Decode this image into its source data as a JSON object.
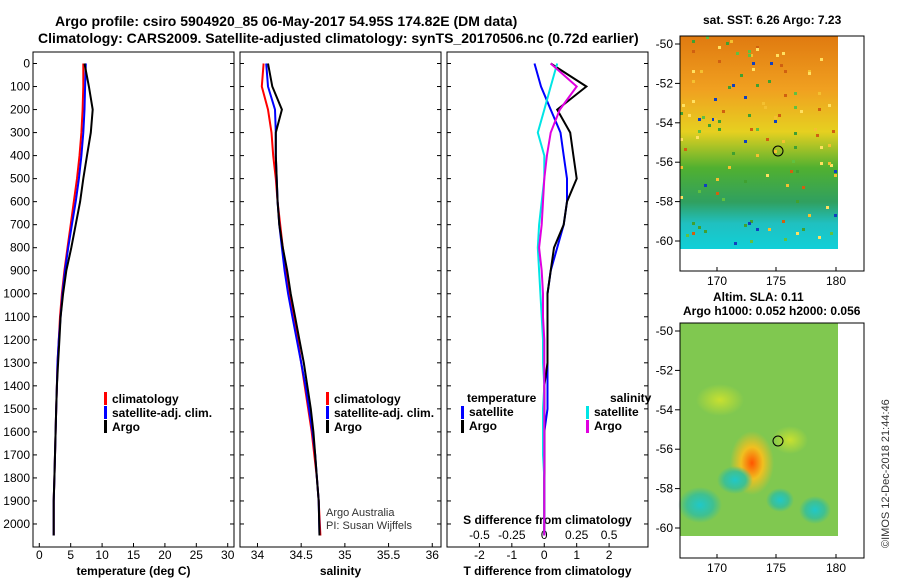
{
  "header": {
    "line1": "Argo profile: csiro 5904920_85 06-May-2017 54.95S 174.82E (DM data)",
    "line2": "Climatology: CARS2009. Satellite-adjusted climatology: synTS_20170506.nc (0.72d earlier)"
  },
  "colors": {
    "climatology": "#ff0000",
    "satellite": "#0000ff",
    "argo": "#000000",
    "sal_satellite": "#00e5e5",
    "sal_argo": "#e000e0"
  },
  "depth_ticks": [
    "0",
    "100",
    "200",
    "300",
    "400",
    "500",
    "600",
    "700",
    "800",
    "900",
    "1000",
    "1100",
    "1200",
    "1300",
    "1400",
    "1500",
    "1600",
    "1700",
    "1800",
    "1900",
    "2000"
  ],
  "legend": {
    "climatology": "climatology",
    "satellite_adj": "satellite-adj. clim.",
    "argo": "Argo",
    "temperature": "temperature",
    "salinity": "salinity",
    "satellite": "satellite"
  },
  "credits": {
    "line1": "Argo Australia",
    "line2": "PI: Susan Wijffels"
  },
  "map_sst": {
    "title": "sat. SST: 6.26 Argo: 7.23"
  },
  "map_sla": {
    "title1": "Altim. SLA: 0.11",
    "title2": "Argo h1000: 0.052 h2000: 0.056"
  },
  "map_ticks": {
    "lat": [
      "-50",
      "-52",
      "-54",
      "-56",
      "-58",
      "-60"
    ],
    "lon": [
      "170",
      "175",
      "180"
    ]
  },
  "imos": "©IMOS 12-Dec-2018 21:44:46",
  "chart_data": [
    {
      "type": "line",
      "xlabel": "temperature (deg C)",
      "ylabel": "",
      "xlim": [
        -1,
        31
      ],
      "ylim": [
        2100,
        -50
      ],
      "xticks": [
        "0",
        "5",
        "10",
        "15",
        "20",
        "25",
        "30"
      ],
      "series": [
        {
          "name": "climatology",
          "x": [
            7.0,
            7.0,
            6.9,
            6.7,
            6.4,
            6.0,
            5.5,
            5.0,
            4.5,
            4.0,
            3.6,
            3.3,
            3.1,
            2.9,
            2.8,
            2.7,
            2.6,
            2.5,
            2.4,
            2.3,
            2.3
          ],
          "y": [
            0,
            100,
            200,
            300,
            400,
            500,
            600,
            700,
            800,
            900,
            1000,
            1100,
            1200,
            1300,
            1400,
            1500,
            1600,
            1700,
            1800,
            1900,
            2050
          ]
        },
        {
          "name": "satellite-adj. clim.",
          "x": [
            7.4,
            7.3,
            7.2,
            7.0,
            6.7,
            6.3,
            5.8,
            5.2,
            4.6,
            4.1,
            3.7,
            3.4,
            3.1,
            2.9,
            2.8,
            2.7,
            2.6,
            2.5,
            2.4,
            2.3,
            2.3
          ],
          "y": [
            0,
            100,
            200,
            300,
            400,
            500,
            600,
            700,
            800,
            900,
            1000,
            1100,
            1200,
            1300,
            1400,
            1500,
            1600,
            1700,
            1800,
            1900,
            2050
          ]
        },
        {
          "name": "Argo",
          "x": [
            7.2,
            7.9,
            8.5,
            8.2,
            7.6,
            7.0,
            6.5,
            5.8,
            5.1,
            4.3,
            3.8,
            3.4,
            3.2,
            3.0,
            2.8,
            2.7,
            2.6,
            2.5,
            2.4,
            2.3,
            2.3
          ],
          "y": [
            0,
            100,
            200,
            300,
            400,
            500,
            600,
            700,
            800,
            900,
            1000,
            1100,
            1200,
            1300,
            1400,
            1500,
            1600,
            1700,
            1800,
            1900,
            2050
          ]
        }
      ]
    },
    {
      "type": "line",
      "xlabel": "salinity",
      "ylabel": "",
      "xlim": [
        33.8,
        36.1
      ],
      "ylim": [
        2100,
        -50
      ],
      "xticks": [
        "34",
        "34.5",
        "35",
        "35.5",
        "36"
      ],
      "series": [
        {
          "name": "climatology",
          "x": [
            34.07,
            34.05,
            34.12,
            34.16,
            34.18,
            34.21,
            34.23,
            34.26,
            34.29,
            34.33,
            34.37,
            34.42,
            34.46,
            34.5,
            34.54,
            34.58,
            34.62,
            34.65,
            34.68,
            34.7,
            34.72
          ],
          "y": [
            0,
            100,
            200,
            300,
            400,
            500,
            600,
            700,
            800,
            900,
            1000,
            1100,
            1200,
            1300,
            1400,
            1500,
            1600,
            1700,
            1800,
            1900,
            2050
          ]
        },
        {
          "name": "satellite-adj. clim.",
          "x": [
            34.1,
            34.12,
            34.2,
            34.21,
            34.21,
            34.22,
            34.23,
            34.25,
            34.28,
            34.31,
            34.35,
            34.4,
            34.45,
            34.5,
            34.55,
            34.59,
            34.63,
            34.66,
            34.68,
            34.7,
            34.71
          ],
          "y": [
            0,
            100,
            200,
            300,
            400,
            500,
            600,
            700,
            800,
            900,
            1000,
            1100,
            1200,
            1300,
            1400,
            1500,
            1600,
            1700,
            1800,
            1900,
            2050
          ]
        },
        {
          "name": "Argo",
          "x": [
            34.12,
            34.17,
            34.28,
            34.21,
            34.21,
            34.22,
            34.23,
            34.25,
            34.29,
            34.34,
            34.38,
            34.43,
            34.48,
            34.53,
            34.57,
            34.61,
            34.64,
            34.66,
            34.68,
            34.7,
            34.71
          ],
          "y": [
            0,
            100,
            200,
            300,
            400,
            500,
            600,
            700,
            800,
            900,
            1000,
            1100,
            1200,
            1300,
            1400,
            1500,
            1600,
            1700,
            1800,
            1900,
            2050
          ]
        }
      ]
    },
    {
      "type": "line",
      "xlabel": "T difference from climatology",
      "ylabel": "",
      "xlim": [
        -3,
        3.2
      ],
      "ylim": [
        2100,
        -50
      ],
      "xticks": [
        "-2",
        "-1",
        "0",
        "1",
        "2"
      ],
      "xlabel2": "S difference from climatology",
      "xticks2": [
        "-0.5",
        "-0.25",
        "0",
        "0.25",
        "0.5"
      ],
      "series": [
        {
          "name": "temperature satellite",
          "x": [
            -0.3,
            -0.1,
            0.2,
            0.5,
            0.6,
            0.7,
            0.7,
            0.6,
            0.4,
            0.2,
            0.1,
            0.1,
            0.1,
            0.1,
            0.1,
            0.1,
            0.0,
            0.0,
            0.0,
            0.0,
            0.0
          ],
          "y": [
            0,
            100,
            200,
            300,
            400,
            500,
            600,
            700,
            800,
            900,
            1000,
            1100,
            1200,
            1300,
            1400,
            1500,
            1600,
            1700,
            1800,
            1900,
            2050
          ]
        },
        {
          "name": "temperature Argo",
          "x": [
            0.2,
            1.3,
            0.4,
            0.8,
            0.9,
            1.0,
            0.7,
            0.6,
            0.3,
            0.2,
            0.1,
            0.1,
            0.1,
            0.1,
            0.0,
            0.0,
            0.0,
            0.0,
            0.0,
            0.0,
            0.0
          ],
          "y": [
            0,
            100,
            200,
            300,
            400,
            500,
            600,
            700,
            800,
            900,
            1000,
            1100,
            1200,
            1300,
            1400,
            1500,
            1600,
            1700,
            1800,
            1900,
            2050
          ]
        },
        {
          "name": "salinity satellite",
          "x": [
            0.1,
            0.05,
            0.0,
            -0.05,
            0.0,
            0.0,
            -0.02,
            -0.04,
            -0.05,
            -0.04,
            -0.03,
            -0.02,
            -0.01,
            -0.01,
            0.0,
            -0.01,
            -0.01,
            -0.01,
            0.0,
            0.0,
            0.0
          ],
          "y": [
            0,
            100,
            200,
            300,
            400,
            500,
            600,
            700,
            800,
            900,
            1000,
            1100,
            1200,
            1300,
            1400,
            1500,
            1600,
            1700,
            1800,
            1900,
            2050
          ]
        },
        {
          "name": "salinity Argo",
          "x": [
            0.05,
            0.25,
            0.12,
            0.05,
            0.02,
            0.0,
            -0.01,
            -0.02,
            -0.04,
            -0.02,
            -0.01,
            -0.01,
            0.0,
            0.0,
            0.0,
            0.0,
            0.0,
            0.0,
            0.0,
            0.0,
            0.0
          ],
          "y": [
            0,
            100,
            200,
            300,
            400,
            500,
            600,
            700,
            800,
            900,
            1000,
            1100,
            1200,
            1300,
            1400,
            1500,
            1600,
            1700,
            1800,
            1900,
            2050
          ]
        }
      ]
    }
  ]
}
